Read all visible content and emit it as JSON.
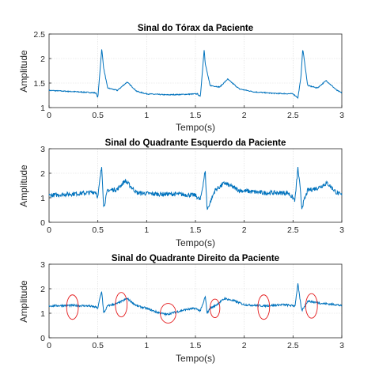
{
  "colors": {
    "signal": "#0072bd",
    "annotation": "#e41a1c",
    "axis": "#262626",
    "grid": "#d9d9d9"
  },
  "chart_data": [
    {
      "type": "line",
      "title": "Sinal do Tórax da Paciente",
      "xlabel": "Tempo(s)",
      "ylabel": "Amplitude",
      "xlim": [
        0,
        3
      ],
      "ylim": [
        1,
        2.5
      ],
      "xticks": [
        0,
        0.5,
        1,
        1.5,
        2,
        2.5,
        3
      ],
      "yticks": [
        1,
        1.5,
        2,
        2.5
      ],
      "xtick_labels": [
        "0",
        "0.5",
        "1",
        "1.5",
        "2",
        "2.5",
        "3"
      ],
      "ytick_labels": [
        "1",
        "1.5",
        "2",
        "2.5"
      ],
      "grid": true,
      "series": [
        {
          "color": "#0072bd",
          "x": [
            0,
            0.1,
            0.2,
            0.3,
            0.4,
            0.48,
            0.5,
            0.52,
            0.54,
            0.56,
            0.6,
            0.7,
            0.8,
            0.9,
            1.0,
            1.2,
            1.4,
            1.52,
            1.55,
            1.57,
            1.59,
            1.6,
            1.65,
            1.75,
            1.83,
            1.95,
            2.1,
            2.3,
            2.5,
            2.55,
            2.58,
            2.6,
            2.62,
            2.65,
            2.75,
            2.84,
            2.95,
            3.0
          ],
          "y": [
            1.35,
            1.34,
            1.33,
            1.32,
            1.31,
            1.3,
            1.2,
            1.7,
            2.2,
            1.8,
            1.4,
            1.35,
            1.52,
            1.33,
            1.28,
            1.26,
            1.27,
            1.28,
            1.22,
            1.7,
            2.2,
            1.9,
            1.45,
            1.42,
            1.58,
            1.38,
            1.32,
            1.29,
            1.28,
            1.2,
            1.6,
            2.2,
            1.9,
            1.45,
            1.4,
            1.55,
            1.35,
            1.3
          ],
          "noise": 0.01
        }
      ]
    },
    {
      "type": "line",
      "title": "Sinal do Quadrante Esquerdo da Paciente",
      "xlabel": "Tempo(s)",
      "ylabel": "Amplitude",
      "xlim": [
        0,
        3
      ],
      "ylim": [
        0,
        3
      ],
      "xticks": [
        0,
        0.5,
        1,
        1.5,
        2,
        2.5,
        3
      ],
      "yticks": [
        0,
        1,
        2,
        3
      ],
      "xtick_labels": [
        "0",
        "0.5",
        "1",
        "1.5",
        "2",
        "2.5",
        "3"
      ],
      "ytick_labels": [
        "0",
        "1",
        "2",
        "3"
      ],
      "grid": true,
      "series": [
        {
          "color": "#0072bd",
          "x": [
            0,
            0.2,
            0.4,
            0.48,
            0.5,
            0.52,
            0.54,
            0.56,
            0.6,
            0.7,
            0.78,
            0.9,
            1.1,
            1.3,
            1.5,
            1.55,
            1.58,
            1.6,
            1.62,
            1.7,
            1.8,
            1.95,
            2.2,
            2.45,
            2.52,
            2.55,
            2.57,
            2.59,
            2.65,
            2.75,
            2.85,
            2.95,
            3.0
          ],
          "y": [
            1.1,
            1.15,
            1.2,
            1.25,
            1.0,
            1.7,
            2.3,
            0.6,
            1.3,
            1.35,
            1.7,
            1.2,
            1.15,
            1.15,
            1.1,
            0.9,
            1.6,
            2.1,
            0.5,
            1.3,
            1.6,
            1.3,
            1.2,
            1.2,
            0.9,
            2.2,
            1.5,
            0.6,
            1.3,
            1.4,
            1.6,
            1.2,
            1.1
          ],
          "noise": 0.09
        }
      ]
    },
    {
      "type": "line",
      "title": "Sinal do Quadrante Direito da Paciente",
      "xlabel": "Tempo(s)",
      "ylabel": "Amplitude",
      "xlim": [
        0,
        3
      ],
      "ylim": [
        0,
        3
      ],
      "xticks": [
        0,
        0.5,
        1,
        1.5,
        2,
        2.5,
        3
      ],
      "yticks": [
        0,
        1,
        2,
        3
      ],
      "xtick_labels": [
        "0",
        "0.5",
        "1",
        "1.5",
        "2",
        "2.5",
        "3"
      ],
      "ytick_labels": [
        "0",
        "1",
        "2",
        "3"
      ],
      "grid": true,
      "series": [
        {
          "color": "#0072bd",
          "x": [
            0,
            0.2,
            0.4,
            0.48,
            0.5,
            0.52,
            0.54,
            0.56,
            0.6,
            0.7,
            0.8,
            0.9,
            1.0,
            1.1,
            1.2,
            1.3,
            1.4,
            1.5,
            1.55,
            1.58,
            1.6,
            1.62,
            1.65,
            1.7,
            1.8,
            1.9,
            2.0,
            2.2,
            2.4,
            2.52,
            2.55,
            2.57,
            2.59,
            2.65,
            2.8,
            2.95,
            3.0
          ],
          "y": [
            1.3,
            1.32,
            1.3,
            1.25,
            1.2,
            1.6,
            1.9,
            1.0,
            1.3,
            1.4,
            1.6,
            1.3,
            1.2,
            1.05,
            0.95,
            1.05,
            1.15,
            1.2,
            1.1,
            1.4,
            1.7,
            1.0,
            1.2,
            1.3,
            1.6,
            1.5,
            1.35,
            1.3,
            1.35,
            1.3,
            2.2,
            1.6,
            1.1,
            1.5,
            1.4,
            1.35,
            1.3
          ],
          "noise": 0.04
        }
      ],
      "annotations": [
        {
          "shape": "ellipse",
          "cx": 0.24,
          "cy": 1.25,
          "rx": 0.06,
          "ry": 0.5
        },
        {
          "shape": "ellipse",
          "cx": 0.74,
          "cy": 1.35,
          "rx": 0.06,
          "ry": 0.5
        },
        {
          "shape": "ellipse",
          "cx": 1.22,
          "cy": 1.0,
          "rx": 0.08,
          "ry": 0.4
        },
        {
          "shape": "ellipse",
          "cx": 1.7,
          "cy": 1.2,
          "rx": 0.05,
          "ry": 0.38
        },
        {
          "shape": "ellipse",
          "cx": 2.2,
          "cy": 1.25,
          "rx": 0.06,
          "ry": 0.5
        },
        {
          "shape": "ellipse",
          "cx": 2.69,
          "cy": 1.3,
          "rx": 0.06,
          "ry": 0.5
        }
      ]
    }
  ]
}
